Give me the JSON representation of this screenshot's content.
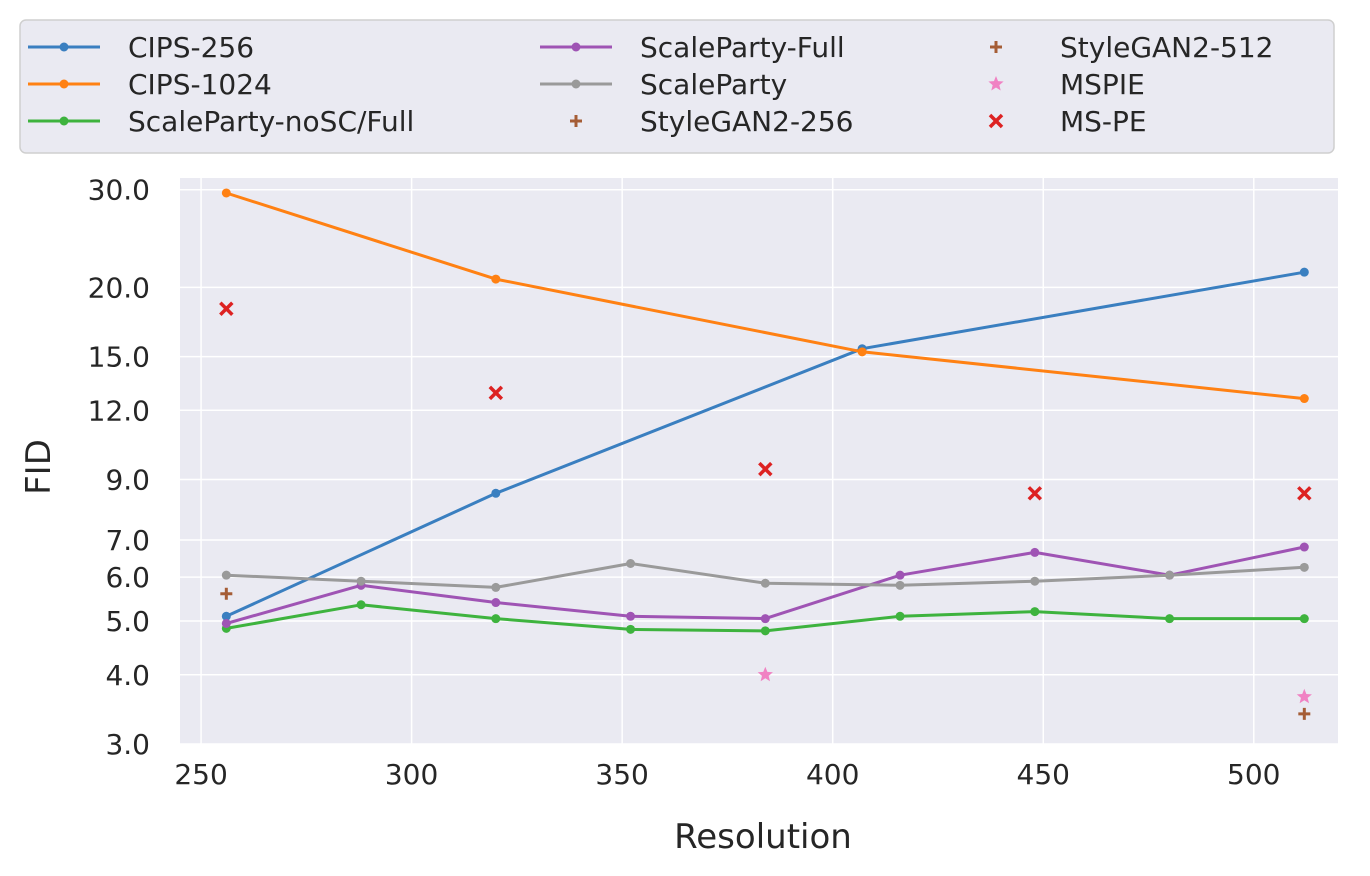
{
  "chart_data": {
    "type": "line",
    "title": "",
    "xlabel": "Resolution",
    "ylabel": "FID",
    "yscale": "log",
    "xlim": [
      245,
      520
    ],
    "ylim": [
      3.0,
      31.5
    ],
    "xticks": [
      250,
      300,
      350,
      400,
      450,
      500
    ],
    "xtick_labels": [
      "250",
      "300",
      "350",
      "400",
      "450",
      "500"
    ],
    "yticks": [
      3,
      4,
      5,
      6,
      7,
      9,
      12,
      15,
      20,
      30
    ],
    "ytick_labels": [
      "3.0",
      "4.0",
      "5.0",
      "6.0",
      "7.0",
      "9.0",
      "12.0",
      "15.0",
      "20.0",
      "30.0"
    ],
    "grid": true,
    "legend_position": "top",
    "series": [
      {
        "name": "CIPS-256",
        "kind": "line",
        "color": "#3a7fc0",
        "x": [
          256,
          320,
          407,
          512
        ],
        "y": [
          5.1,
          8.5,
          15.5,
          21.3
        ]
      },
      {
        "name": "CIPS-1024",
        "kind": "line",
        "color": "#ff8113",
        "x": [
          256,
          320,
          407,
          512
        ],
        "y": [
          29.6,
          20.7,
          15.3,
          12.6
        ]
      },
      {
        "name": "ScaleParty-noSC/Full",
        "kind": "line",
        "color": "#3eb33e",
        "x": [
          256,
          288,
          320,
          352,
          384,
          416,
          448,
          480,
          512
        ],
        "y": [
          4.85,
          5.35,
          5.05,
          4.83,
          4.8,
          5.1,
          5.2,
          5.05,
          5.05
        ]
      },
      {
        "name": "ScaleParty-Full",
        "kind": "line",
        "color": "#9f54b4",
        "x": [
          256,
          288,
          320,
          352,
          384,
          416,
          448,
          480,
          512
        ],
        "y": [
          4.95,
          5.8,
          5.4,
          5.1,
          5.05,
          6.05,
          6.65,
          6.05,
          6.8
        ]
      },
      {
        "name": "ScaleParty",
        "kind": "line",
        "color": "#9a9a9a",
        "x": [
          256,
          288,
          320,
          352,
          384,
          416,
          448,
          480,
          512
        ],
        "y": [
          6.05,
          5.9,
          5.75,
          6.35,
          5.85,
          5.8,
          5.9,
          6.05,
          6.25
        ]
      },
      {
        "name": "StyleGAN2-256",
        "kind": "marker",
        "marker": "plus",
        "color": "#a55d36",
        "x": [
          256
        ],
        "y": [
          5.6
        ]
      },
      {
        "name": "StyleGAN2-512",
        "kind": "marker",
        "marker": "plus",
        "color": "#a55d36",
        "x": [
          512
        ],
        "y": [
          3.4
        ]
      },
      {
        "name": "MSPIE",
        "kind": "marker",
        "marker": "star",
        "color": "#f082c3",
        "x": [
          384,
          512
        ],
        "y": [
          4.0,
          3.65
        ]
      },
      {
        "name": "MS-PE",
        "kind": "marker",
        "marker": "x",
        "color": "#dd2222",
        "x": [
          256,
          320,
          384,
          448,
          512
        ],
        "y": [
          18.3,
          12.9,
          9.4,
          8.5,
          8.5
        ]
      }
    ]
  }
}
